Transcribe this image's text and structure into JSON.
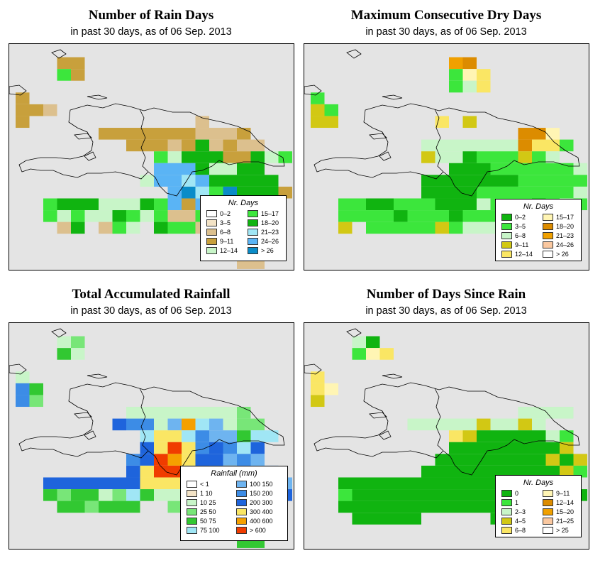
{
  "panels": [
    {
      "key": "rain_days",
      "title": "Number of Rain Days",
      "subtitle": "in past 30 days, as of  06 Sep. 2013",
      "legend_title": "Nr. Days",
      "legend": [
        {
          "label": "0–2",
          "color": "#ffffff"
        },
        {
          "label": "3–5",
          "color": "#f3e3c6"
        },
        {
          "label": "6–8",
          "color": "#dcc08e"
        },
        {
          "label": "9–11",
          "color": "#c8a03c"
        },
        {
          "label": "12–14",
          "color": "#c8f5c8"
        },
        {
          "label": "15–17",
          "color": "#3ce63c"
        },
        {
          "label": "18–20",
          "color": "#10b410"
        },
        {
          "label": "21–23",
          "color": "#a0e6f5"
        },
        {
          "label": "24–26",
          "color": "#5ab4f5"
        },
        {
          "label": "> 26",
          "color": "#0a8cc8"
        }
      ]
    },
    {
      "key": "dry_days",
      "title": "Maximum Consecutive Dry Days",
      "subtitle": "in past 30 days, as of  06 Sep. 2013",
      "legend_title": "Nr. Days",
      "legend": [
        {
          "label": "0–2",
          "color": "#10b410"
        },
        {
          "label": "3–5",
          "color": "#3ce63c"
        },
        {
          "label": "6–8",
          "color": "#c8f5c8"
        },
        {
          "label": "9–11",
          "color": "#d2c814"
        },
        {
          "label": "12–14",
          "color": "#fae664"
        },
        {
          "label": "15–17",
          "color": "#fff5b4"
        },
        {
          "label": "18–20",
          "color": "#dc8c00"
        },
        {
          "label": "21–23",
          "color": "#f0a000"
        },
        {
          "label": "24–26",
          "color": "#fac8a0"
        },
        {
          "label": "> 26",
          "color": "#ffffff"
        }
      ]
    },
    {
      "key": "rainfall",
      "title": "Total Accumulated Rainfall",
      "subtitle": "in past 30 days, as of  06 Sep. 2013",
      "legend_title": "Rainfall (mm)",
      "legend": [
        {
          "label": "< 1",
          "color": "#ffffff"
        },
        {
          "label": "1    10",
          "color": "#f3e3c6"
        },
        {
          "label": "10    25",
          "color": "#c8f5c8"
        },
        {
          "label": "25    50",
          "color": "#78e678"
        },
        {
          "label": "50    75",
          "color": "#32c832"
        },
        {
          "label": "75   100",
          "color": "#a0e6f5"
        },
        {
          "label": "100   150",
          "color": "#6eb4f0"
        },
        {
          "label": "150   200",
          "color": "#3c8ce6"
        },
        {
          "label": "200   300",
          "color": "#1e64dc"
        },
        {
          "label": "300   400",
          "color": "#fae664"
        },
        {
          "label": "400   600",
          "color": "#f5a000"
        },
        {
          "label": "> 600",
          "color": "#f03c00"
        }
      ]
    },
    {
      "key": "since_rain",
      "title": "Number of Days Since Rain",
      "subtitle": "in past 30 days, as of  06 Sep. 2013",
      "legend_title": "Nr. Days",
      "legend": [
        {
          "label": "0",
          "color": "#10b410"
        },
        {
          "label": "1",
          "color": "#3ce63c"
        },
        {
          "label": "2–3",
          "color": "#c8f5c8"
        },
        {
          "label": "4–5",
          "color": "#d2c814"
        },
        {
          "label": "6–8",
          "color": "#fae664"
        },
        {
          "label": "9–11",
          "color": "#fff5b4"
        },
        {
          "label": "12–14",
          "color": "#dc8c00"
        },
        {
          "label": "15–20",
          "color": "#f0a000"
        },
        {
          "label": "21–25",
          "color": "#fac8a0"
        },
        {
          "label": "> 25",
          "color": "#ffffff"
        }
      ]
    }
  ],
  "grids": {
    "rain_days": [
      "....................",
      "...BB...............",
      "...EB...............",
      "....................",
      "B...................",
      "BBC.................",
      "B............C......",
      "......BBBBBBBCCCB...",
      "........BBBCBDCBCC..",
      "..........EFGDDBBDFH",
      "..........IIIGFFGG..",
      ".........FIIKIGGGGG.",
      "...........IJKEJGGGB",
      "..HGGGFFFGHIBIGHIGF.",
      "..HFEFFGEFECCEGFFB..",
      "...CG.CEF.GEHCC.....",
      "...............C....",
      "...............CC...",
      "................CC.."
    ],
    "dry_days": [
      "....................",
      "..........KV........",
      "..........BFE.......",
      "..........BCE.......",
      "B...................",
      "DB..................",
      "DD.......E.D........",
      "...............JJF..",
      "........CCCCCCCJEEB.",
      "........DCCABBBDBC..",
      "..........AAABBBBBBC",
      "........AAAAAAABBBBB",
      "........AAAABBBBBBBC",
      "..BBAABBBAAACBBBABCB",
      "..BBBBABBBABBBBBBBC.",
      "..D.BBBBBDBCCC......",
      ".................C..",
      "...............D....",
      "...................."
    ],
    "rainfall": [
      "....................",
      "...CD...............",
      "...EC...............",
      "....................",
      "C...................",
      "HE..................",
      "HD..................",
      "........CCCCCCCCD...",
      ".......IHHCGKFGCDD..",
      ".........FJJFHGGEFF.",
      ".........IJLJHIHFI..",
      "........HILKJIIGHG..",
      "........IJLLHIHKHGH.",
      "..IIIIIIIJJJIIIIIHGG",
      "..EDEECDFECCCGHGHIHI",
      "...EEDEEE..DEC......",
      "...............ED...",
      "...............EE...",
      "................EE.."
    ],
    "since_rain": [
      "....................",
      "...CA...............",
      "...BFE..............",
      "....................",
      "E...................",
      "EF..................",
      "D...................",
      "...............CCCC.",
      ".......CCCCCDCCDC...",
      "..........EDAAAAACB.",
      "..........AAAAAAAAD.",
      ".........AAAAAAAADAD",
      "........AAAAAAAAAADB",
      "..AAAAAAAAAAAAAAAAA.",
      "..BAAAAAAAAAAAAAAACA",
      "..AAAAAAAAAAAAAAAA..",
      "...AAAAA.....AAA....",
      "...............A....",
      "...................."
    ]
  },
  "grid_codes": {
    "rain_days": {
      "B": "#c8a03c",
      "C": "#dcc08e",
      "D": "#10b410",
      "E": "#3ce63c",
      "F": "#c8f5c8",
      "G": "#10b410",
      "H": "#3ce63c",
      "I": "#5ab4f5",
      "J": "#0a8cc8",
      "K": "#a0e6f5"
    },
    "dry_days": {
      "A": "#10b410",
      "B": "#3ce63c",
      "C": "#c8f5c8",
      "D": "#d2c814",
      "E": "#fae664",
      "F": "#fff5b4",
      "J": "#dc8c00",
      "K": "#f0a000",
      "V": "#dc8c00"
    },
    "rainfall": {
      "C": "#c8f5c8",
      "D": "#78e678",
      "E": "#32c832",
      "F": "#a0e6f5",
      "G": "#6eb4f0",
      "H": "#3c8ce6",
      "I": "#1e64dc",
      "J": "#fae664",
      "K": "#f5a000",
      "L": "#f03c00"
    },
    "since_rain": {
      "A": "#10b410",
      "B": "#3ce63c",
      "C": "#c8f5c8",
      "D": "#d2c814",
      "E": "#fae664",
      "F": "#fff5b4"
    }
  }
}
